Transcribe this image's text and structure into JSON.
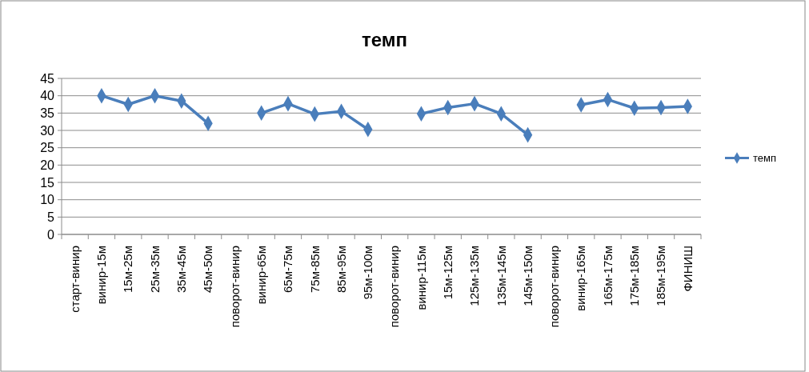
{
  "chart_data": {
    "type": "line",
    "title": "темп",
    "categories": [
      "старт-винир",
      "винир-15м",
      "15м-25м",
      "25м-35м",
      "35м-45м",
      "45м-50м",
      "поворот-винир",
      "винир-65м",
      "65м-75м",
      "75м-85м",
      "85м-95м",
      "95м-100м",
      "поворот-винир",
      "винир-115м",
      "15м-125м",
      "125м-135м",
      "135м-145м",
      "145м-150м",
      "поворот-винир",
      "винир-165м",
      "165м-175м",
      "175м-185м",
      "185м-195м",
      "ФИНИШ"
    ],
    "series": [
      {
        "name": "темп",
        "color": "#4a7ebb",
        "values": [
          null,
          40,
          37.5,
          40,
          38.5,
          32,
          null,
          35,
          37.7,
          34.7,
          35.5,
          30.3,
          null,
          34.8,
          36.6,
          37.7,
          34.8,
          28.7,
          null,
          37.4,
          38.9,
          36.4,
          36.6,
          36.9
        ]
      }
    ],
    "ylim": [
      0,
      45
    ],
    "yticks": [
      0,
      5,
      10,
      15,
      20,
      25,
      30,
      35,
      40,
      45
    ],
    "grid": "y",
    "legend": "right",
    "marker": "diamond",
    "line_style": "solid"
  }
}
